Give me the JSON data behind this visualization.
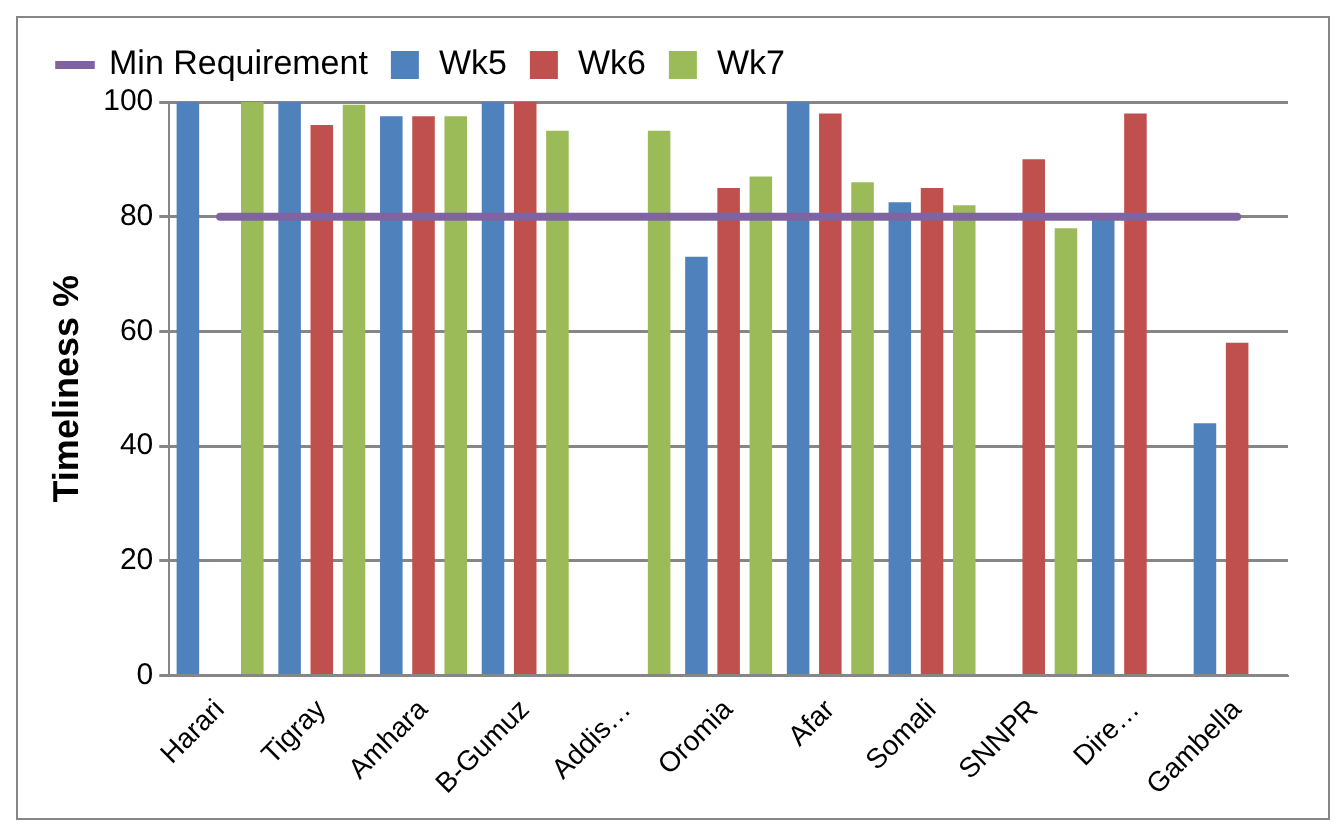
{
  "chart_data": {
    "type": "bar",
    "ylabel": "Timeliness %",
    "categories": [
      "Harari",
      "Tigray",
      "Amhara",
      "B-Gumuz",
      "Addis…",
      "Oromia",
      "Afar",
      "Somali",
      "SNNPR",
      "Dire…",
      "Gambella"
    ],
    "series": [
      {
        "name": "Wk5",
        "color": "#4f81bd",
        "values": [
          100,
          100,
          97.5,
          100,
          null,
          73,
          100,
          82.5,
          null,
          80,
          44
        ]
      },
      {
        "name": "Wk6",
        "color": "#c0504d",
        "values": [
          null,
          96,
          97.5,
          100,
          null,
          85,
          98,
          85,
          90,
          98,
          58
        ]
      },
      {
        "name": "Wk7",
        "color": "#9bbb59",
        "values": [
          100,
          99.5,
          97.5,
          95,
          95,
          87,
          86,
          82,
          78,
          null,
          null
        ]
      },
      {
        "name": "Min Requirement",
        "type": "line",
        "color": "#8064a2",
        "values": [
          80,
          80,
          80,
          80,
          80,
          80,
          80,
          80,
          80,
          80,
          80
        ]
      }
    ],
    "ylim": [
      0,
      100
    ],
    "yticks": [
      0,
      20,
      40,
      60,
      80,
      100
    ],
    "grid": "y",
    "legend": "top"
  }
}
